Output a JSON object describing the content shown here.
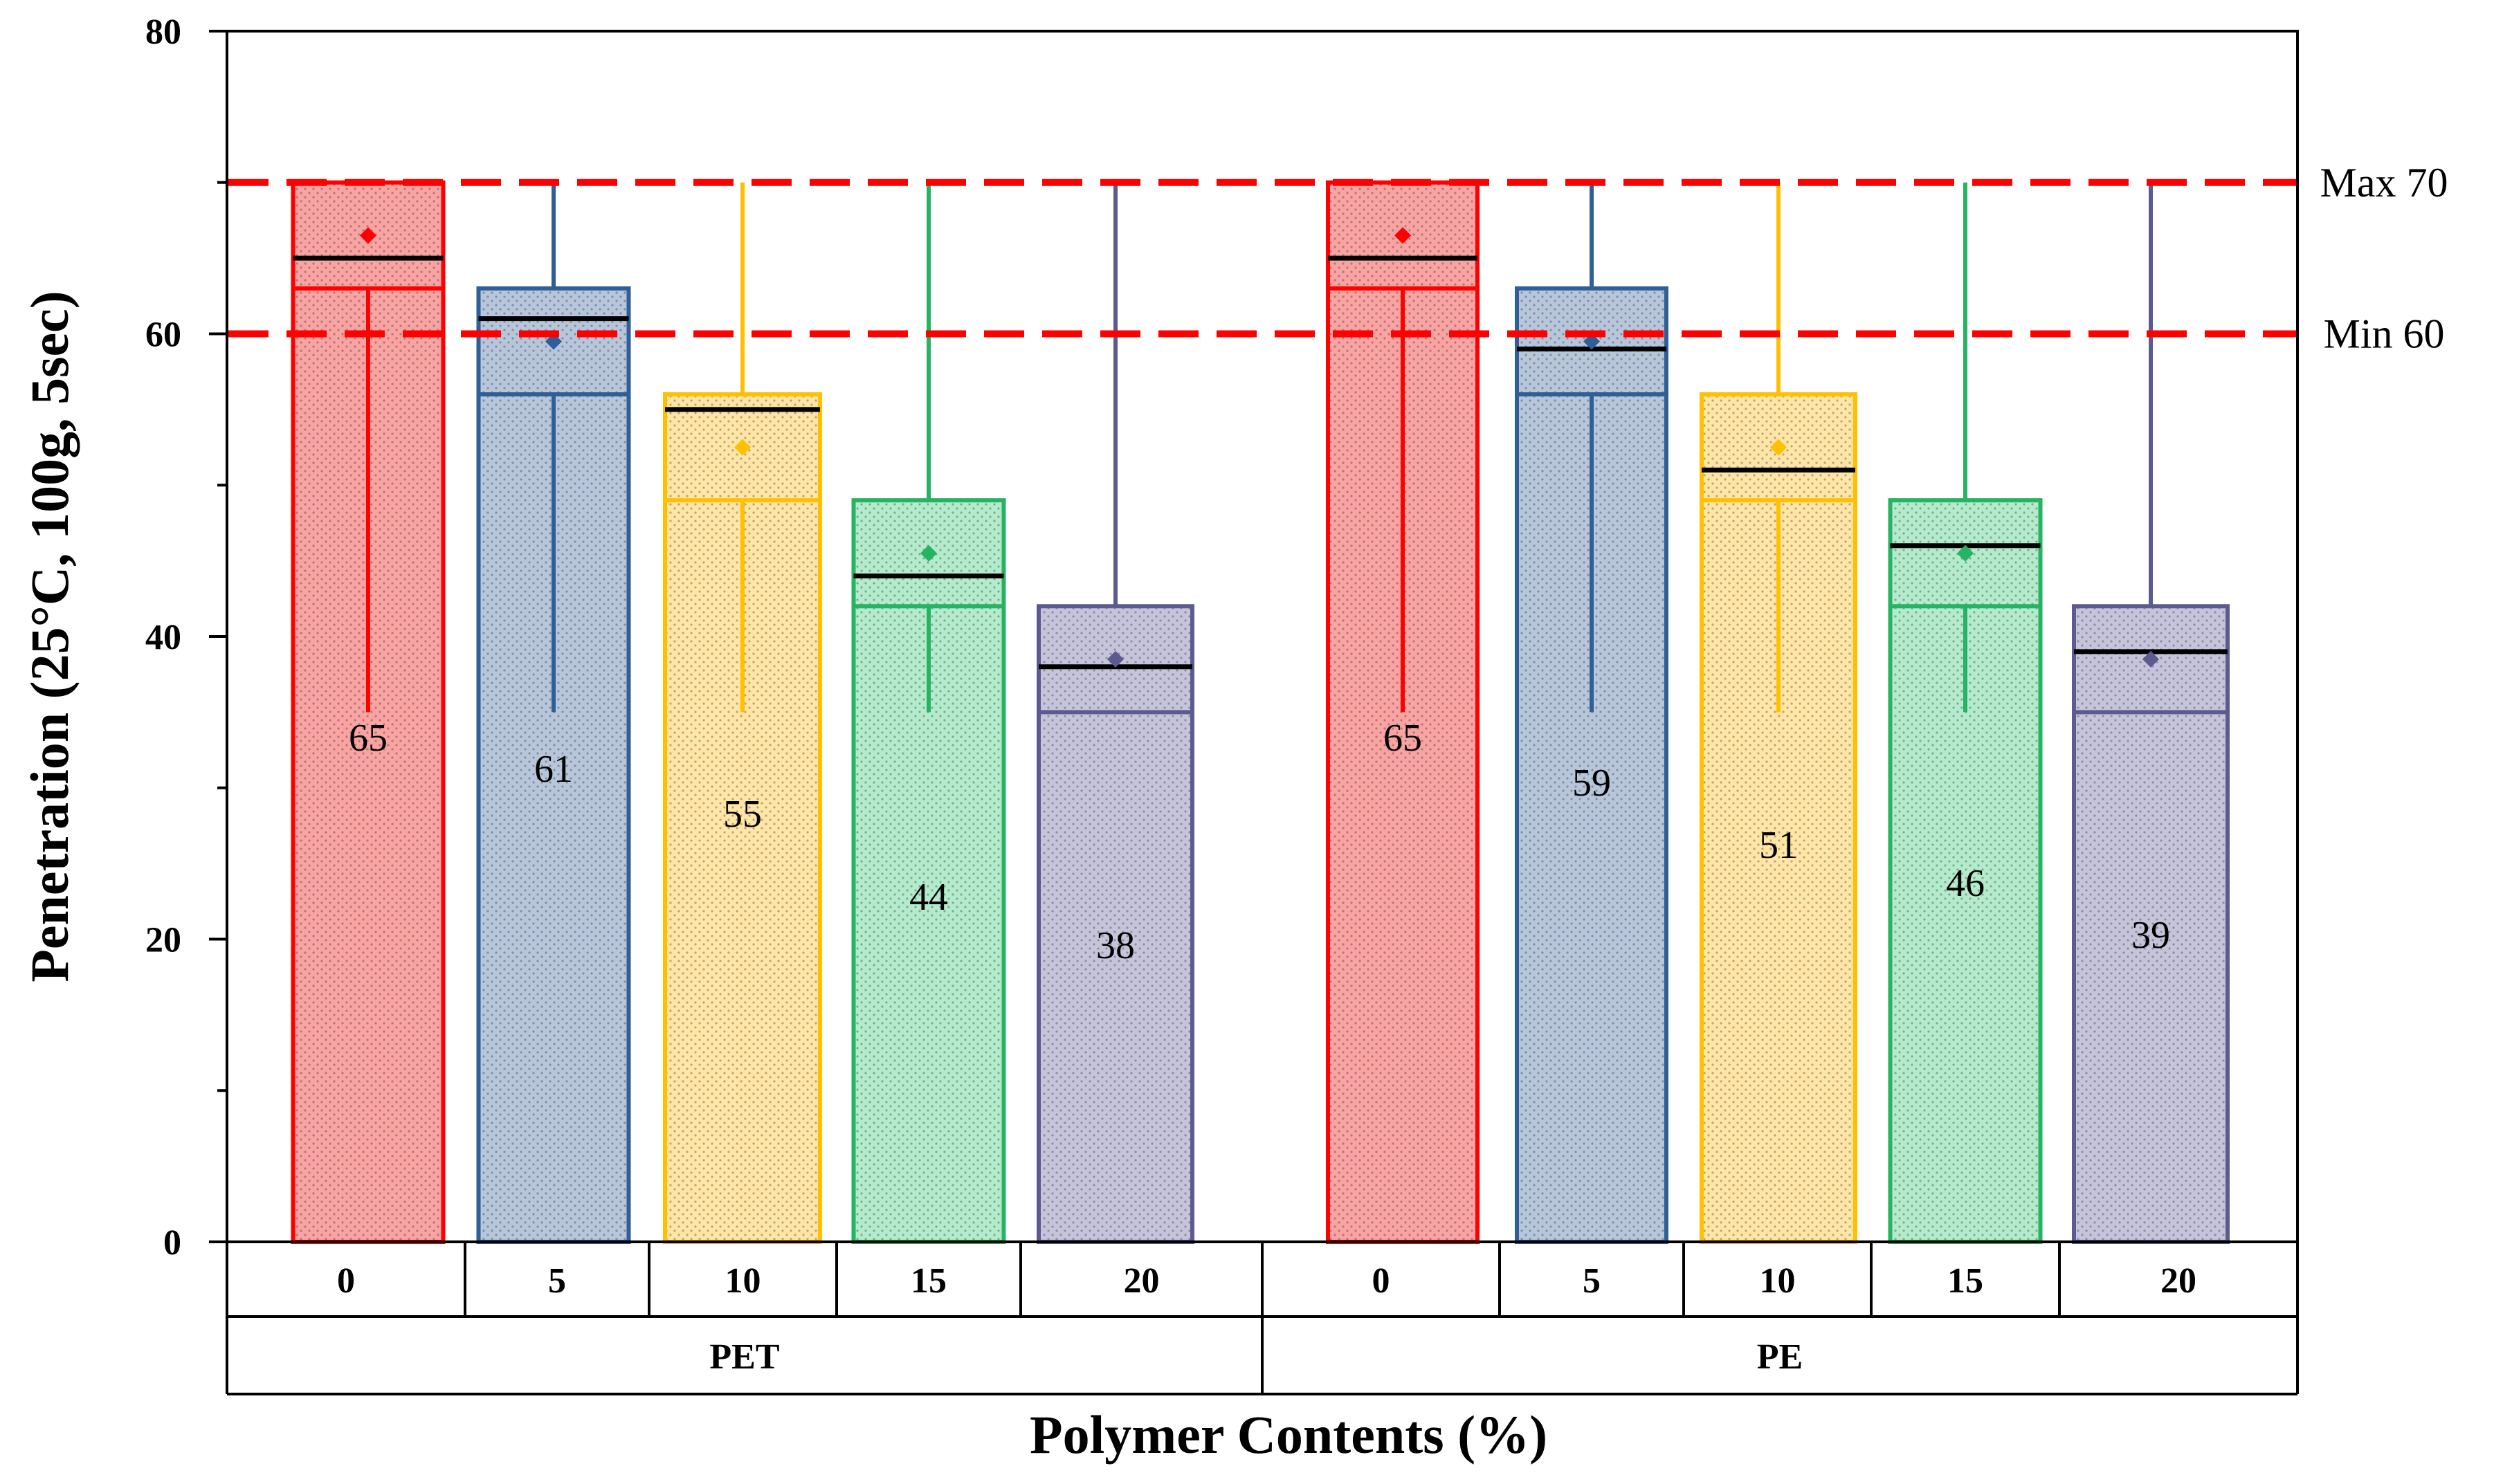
{
  "chart_data": {
    "type": "box",
    "ylabel": "Penetration (25°C, 100g, 5sec)",
    "xlabel": "Polymer Contents (%)",
    "ylim": [
      0,
      80
    ],
    "yticks": [
      "0",
      "20",
      "40",
      "60",
      "80"
    ],
    "groups": [
      {
        "name": "PET",
        "boxes": [
          {
            "category": "0",
            "color": "#ff0000",
            "fill": "#f9a3a3",
            "q1": 63,
            "median": 65,
            "q3": 70,
            "mean": 66.5,
            "whisker_low": 35,
            "whisker_high": 70,
            "label": "65"
          },
          {
            "category": "5",
            "color": "#2e5f96",
            "fill": "#b7c6db",
            "q1": 56,
            "median": 61,
            "q3": 63,
            "mean": 59.5,
            "whisker_low": 35,
            "whisker_high": 70,
            "label": "61"
          },
          {
            "category": "10",
            "color": "#ffc000",
            "fill": "#ffe5a6",
            "q1": 49,
            "median": 55,
            "q3": 56,
            "mean": 52.5,
            "whisker_low": 35,
            "whisker_high": 70,
            "label": "55"
          },
          {
            "category": "15",
            "color": "#26b462",
            "fill": "#b3ebcc",
            "q1": 42,
            "median": 44,
            "q3": 49,
            "mean": 45.5,
            "whisker_low": 35,
            "whisker_high": 70,
            "label": "44"
          },
          {
            "category": "20",
            "color": "#5c5a8f",
            "fill": "#c6c4da",
            "q1": 35,
            "median": 38,
            "q3": 42,
            "mean": 38.5,
            "whisker_low": 35,
            "whisker_high": 70,
            "label": "38"
          }
        ]
      },
      {
        "name": "PE",
        "boxes": [
          {
            "category": "0",
            "color": "#ff0000",
            "fill": "#f9a3a3",
            "q1": 63,
            "median": 65,
            "q3": 70,
            "mean": 66.5,
            "whisker_low": 35,
            "whisker_high": 70,
            "label": "65"
          },
          {
            "category": "5",
            "color": "#2e5f96",
            "fill": "#b7c6db",
            "q1": 56,
            "median": 59,
            "q3": 63,
            "mean": 59.5,
            "whisker_low": 35,
            "whisker_high": 70,
            "label": "59"
          },
          {
            "category": "10",
            "color": "#ffc000",
            "fill": "#ffe5a6",
            "q1": 49,
            "median": 51,
            "q3": 56,
            "mean": 52.5,
            "whisker_low": 35,
            "whisker_high": 70,
            "label": "51"
          },
          {
            "category": "15",
            "color": "#26b462",
            "fill": "#b3ebcc",
            "q1": 42,
            "median": 46,
            "q3": 49,
            "mean": 45.5,
            "whisker_low": 35,
            "whisker_high": 70,
            "label": "46"
          },
          {
            "category": "20",
            "color": "#5c5a8f",
            "fill": "#c6c4da",
            "q1": 35,
            "median": 39,
            "q3": 42,
            "mean": 38.5,
            "whisker_low": 35,
            "whisker_high": 70,
            "label": "39"
          }
        ]
      }
    ],
    "reference_lines": [
      {
        "value": 70,
        "label": "Max 70",
        "color": "#ff0000"
      },
      {
        "value": 60,
        "label": "Min 60",
        "color": "#ff0000"
      }
    ]
  }
}
